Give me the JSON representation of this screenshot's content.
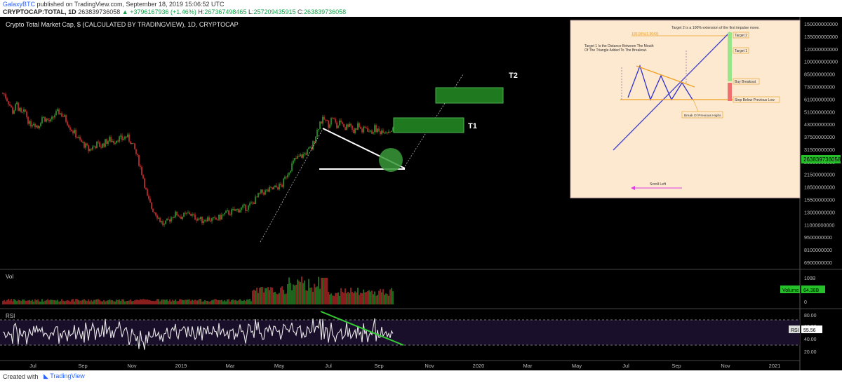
{
  "header": {
    "author": "GalaxyBTC",
    "published": "published on TradingView.com, September 18, 2019 15:06:52 UTC",
    "symbol": "CRYPTOCAP:TOTAL, 1D",
    "close_value": "263839736058",
    "change": "+3796167936 (+1.46%)",
    "high_label": "H:",
    "high": "267367498465",
    "low_label": "L:",
    "low": "257209435915",
    "close_label": "C:",
    "close": "263839736058"
  },
  "footer": {
    "created_with": "Created with",
    "brand": "TradingView"
  },
  "colors": {
    "background": "#000000",
    "up_candle": "#2e9d2e",
    "down_candle": "#d32f2f",
    "zone_fill": "#1f7a1f",
    "zone_border": "#4caf50",
    "rsi_band": "#1a0f2a",
    "price_label": "#26c12a",
    "trendline_green": "#33cc33"
  },
  "chart_data": [
    {
      "type": "candlestick",
      "title": "Crypto Total Market Cap, $ (CALCULATED BY TRADINGVIEW), 1D, CRYPTOCAP",
      "x_ticks": [
        "Jul",
        "Sep",
        "Nov",
        "2019",
        "Mar",
        "May",
        "Jul",
        "Sep",
        "Nov",
        "2020",
        "Mar",
        "May",
        "Jul",
        "Sep",
        "Nov",
        "2021"
      ],
      "y_ticks": [
        "150000000000",
        "135000000000",
        "120000000000",
        "100000000000",
        "85000000000",
        "73000000000",
        "61000000000",
        "51000000000",
        "43000000000",
        "37500000000",
        "31500000000",
        "26500000000",
        "21500000000",
        "18500000000",
        "15500000000",
        "13000000000",
        "11000000000",
        "9500000000",
        "8100000000",
        "6900000000"
      ],
      "price_path": [
        [
          0,
          310
        ],
        [
          6,
          305
        ],
        [
          12,
          290
        ],
        [
          18,
          270
        ],
        [
          24,
          285
        ],
        [
          30,
          265
        ],
        [
          36,
          270
        ],
        [
          42,
          245
        ],
        [
          48,
          250
        ],
        [
          54,
          240
        ],
        [
          60,
          260
        ],
        [
          66,
          255
        ],
        [
          72,
          250
        ],
        [
          78,
          265
        ],
        [
          84,
          270
        ],
        [
          90,
          262
        ],
        [
          96,
          250
        ],
        [
          102,
          235
        ],
        [
          108,
          225
        ],
        [
          114,
          212
        ],
        [
          120,
          205
        ],
        [
          126,
          195
        ],
        [
          132,
          200
        ],
        [
          138,
          206
        ],
        [
          144,
          202
        ],
        [
          150,
          210
        ],
        [
          156,
          215
        ],
        [
          162,
          212
        ],
        [
          168,
          218
        ],
        [
          174,
          216
        ],
        [
          180,
          222
        ],
        [
          186,
          212
        ],
        [
          192,
          195
        ],
        [
          198,
          170
        ],
        [
          204,
          140
        ],
        [
          210,
          100
        ],
        [
          216,
          80
        ],
        [
          222,
          70
        ],
        [
          228,
          55
        ],
        [
          234,
          45
        ],
        [
          240,
          55
        ],
        [
          246,
          65
        ],
        [
          252,
          68
        ],
        [
          258,
          63
        ],
        [
          264,
          65
        ],
        [
          270,
          70
        ],
        [
          276,
          62
        ],
        [
          282,
          60
        ],
        [
          288,
          55
        ],
        [
          294,
          60
        ],
        [
          300,
          57
        ],
        [
          306,
          55
        ],
        [
          312,
          60
        ],
        [
          318,
          66
        ],
        [
          324,
          70
        ],
        [
          330,
          72
        ],
        [
          336,
          75
        ],
        [
          342,
          78
        ],
        [
          348,
          80
        ],
        [
          354,
          82
        ],
        [
          360,
          90
        ],
        [
          366,
          100
        ],
        [
          372,
          110
        ],
        [
          378,
          112
        ],
        [
          384,
          115
        ],
        [
          390,
          118
        ],
        [
          396,
          122
        ],
        [
          402,
          125
        ],
        [
          408,
          145
        ],
        [
          414,
          160
        ],
        [
          420,
          175
        ],
        [
          426,
          180
        ],
        [
          432,
          185
        ],
        [
          438,
          192
        ],
        [
          444,
          198
        ],
        [
          450,
          225
        ],
        [
          456,
          250
        ],
        [
          462,
          255
        ],
        [
          468,
          245
        ],
        [
          474,
          260
        ],
        [
          480,
          240
        ],
        [
          486,
          252
        ],
        [
          492,
          238
        ],
        [
          498,
          250
        ],
        [
          504,
          230
        ],
        [
          510,
          245
        ],
        [
          516,
          232
        ],
        [
          522,
          240
        ],
        [
          528,
          228
        ],
        [
          534,
          238
        ],
        [
          540,
          230
        ],
        [
          546,
          235
        ],
        [
          552,
          232
        ],
        [
          558,
          235
        ]
      ],
      "volume": {
        "label": "Vol",
        "ticks": [
          "100B",
          "50B",
          "0"
        ],
        "last_label": "Volume",
        "last": "64.38B"
      },
      "rsi": {
        "label": "RSI",
        "ticks": [
          "80.00",
          "60.00",
          "40.00",
          "20.00"
        ],
        "last_label": "RSI",
        "last": "55.56"
      },
      "last_price": "263839736058",
      "annotations": {
        "t1": "T1",
        "t2": "T2"
      }
    },
    {
      "type": "diagram",
      "inset": true,
      "notes": {
        "target2": "Target 2 is a 100% extension of the first impulse move.",
        "fib": "100.00%(1.9043)",
        "target1_line1": "Target 1 Is the Distance Between The Mouth",
        "target1_line2": "Of The Triangle Added To The Breakout.",
        "break_highs": "Break Of Previous Highs",
        "scroll": "Scroll Left"
      },
      "labels": {
        "target2": "Target 2",
        "target1": "Target 1",
        "buy": "Buy Breakout",
        "stop": "Stop Below Previous Low"
      }
    }
  ]
}
